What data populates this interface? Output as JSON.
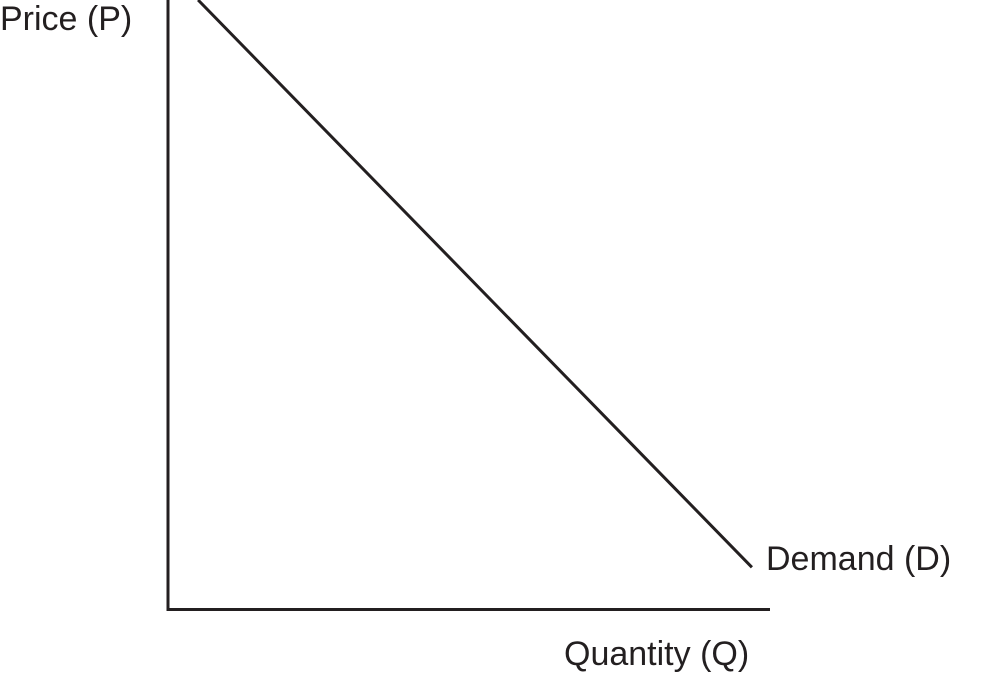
{
  "chart_data": {
    "type": "line",
    "title": "",
    "ylabel": "Price (P)",
    "xlabel": "Quantity (Q)",
    "xlim": [
      0,
      100
    ],
    "ylim": [
      0,
      100
    ],
    "grid": false,
    "series": [
      {
        "name": "Demand (D)",
        "x": [
          5,
          97
        ],
        "y": [
          100,
          7
        ]
      }
    ]
  }
}
